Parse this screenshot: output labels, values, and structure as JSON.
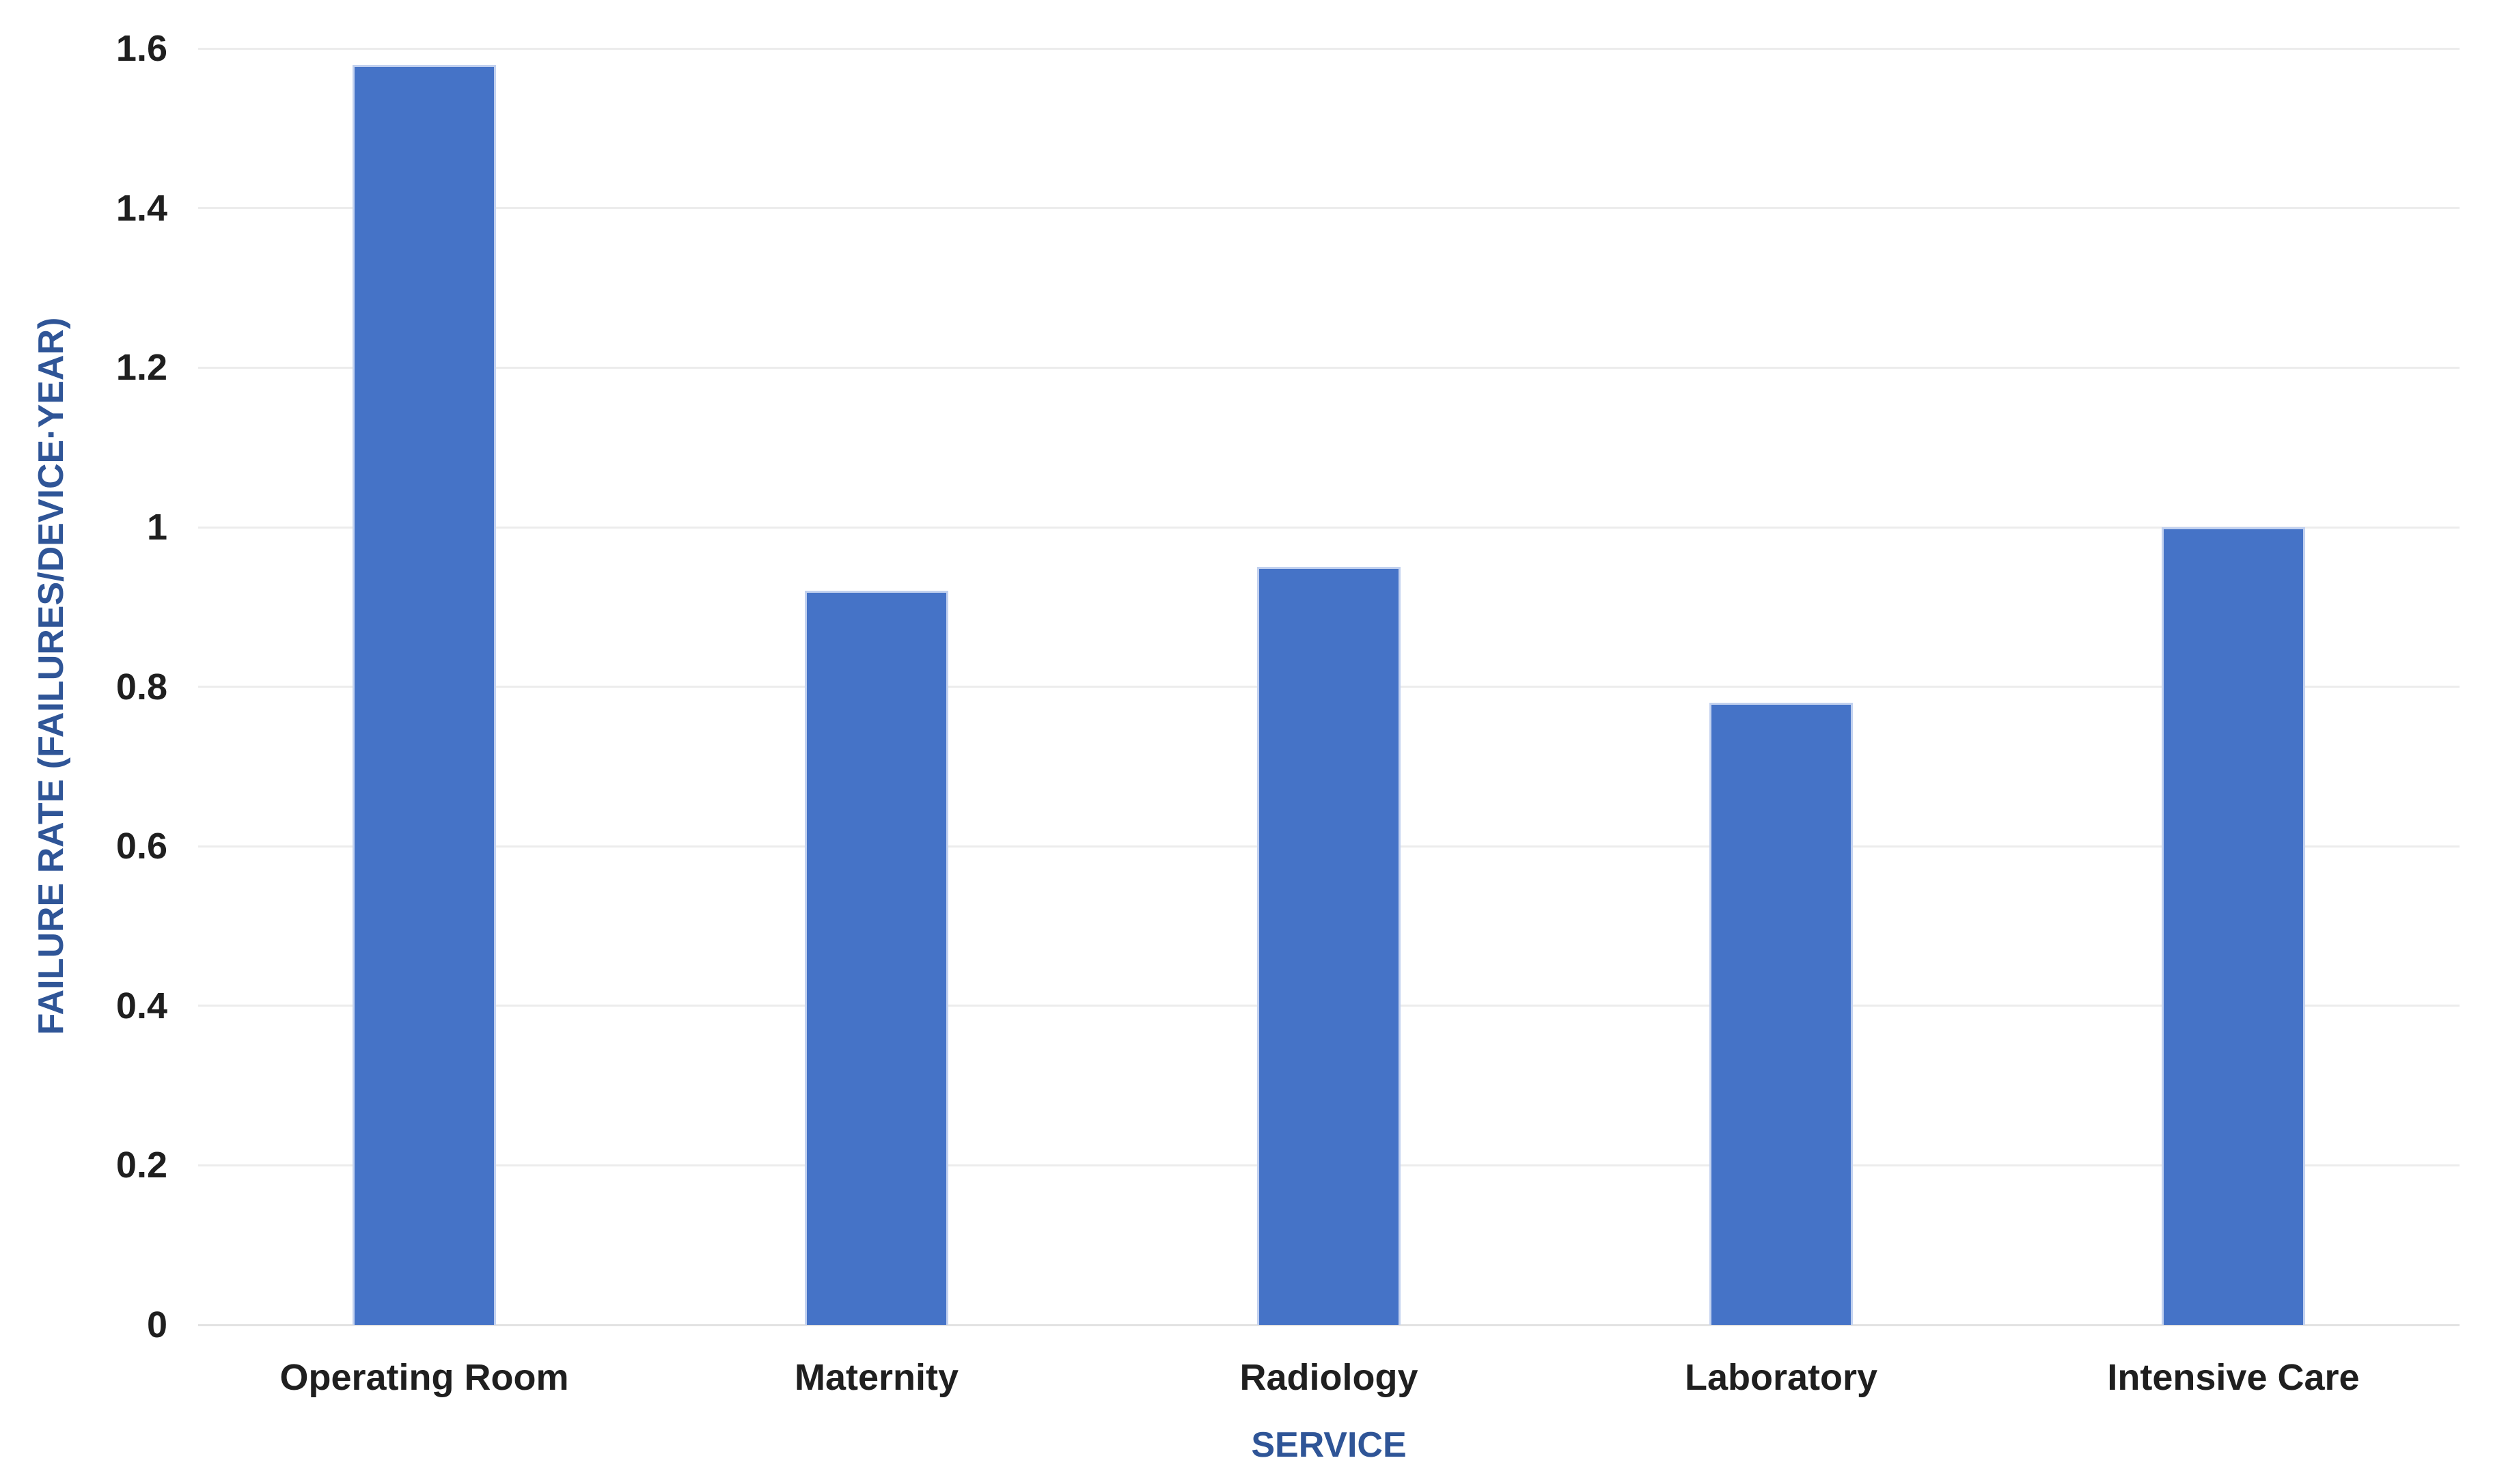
{
  "chart_data": {
    "type": "bar",
    "title": "",
    "categories": [
      "Operating Room",
      "Maternity",
      "Radiology",
      "Laboratory",
      "Intensive Care"
    ],
    "values": [
      1.58,
      0.92,
      0.95,
      0.78,
      1.0
    ],
    "xlabel": "SERVICE",
    "ylabel": "FAILURE RATE (FAILURES/DEVICE·YEAR)",
    "ylim": [
      0,
      1.6
    ],
    "ytick_interval": 0.2,
    "ytick_labels": [
      "0",
      "0.2",
      "0.4",
      "0.6",
      "0.8",
      "1",
      "1.2",
      "1.4",
      "1.6"
    ],
    "grid": "horizontal-only",
    "legend": "none",
    "colors": {
      "bar_fill": "#4573C7",
      "bar_border": "#C2D1EF",
      "axis_title_text": "#2F5597",
      "tick_label_text": "#1F1F1F",
      "gridline": "#ECECEC",
      "axis_line": "#E2E2E2",
      "background": "#FFFFFF"
    }
  }
}
